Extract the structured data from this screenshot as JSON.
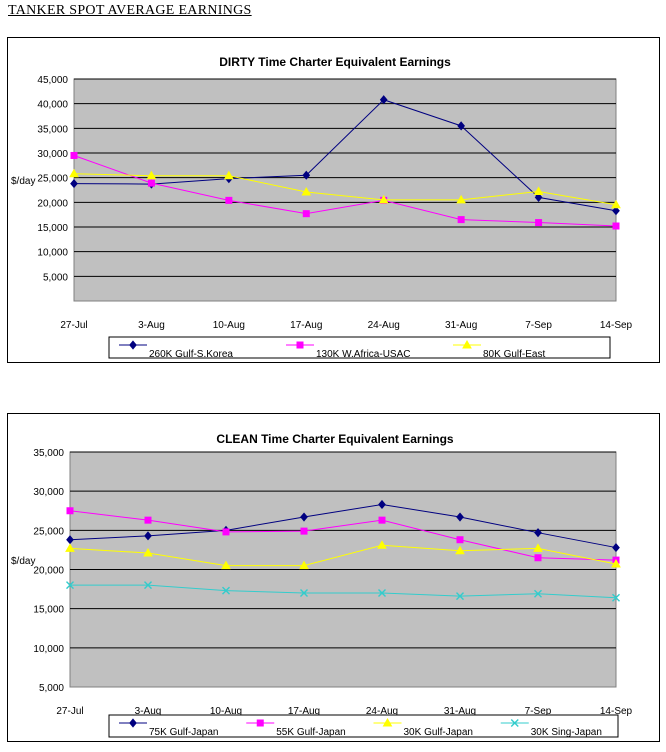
{
  "page_title": "TANKER SPOT AVERAGE EARNINGS",
  "chart_data": [
    {
      "type": "line",
      "title": "DIRTY Time Charter Equivalent Earnings",
      "ylabel": "$/day",
      "xlabel": "",
      "ylim": [
        0,
        45000
      ],
      "yticks": [
        5000,
        10000,
        15000,
        20000,
        25000,
        30000,
        35000,
        40000,
        45000
      ],
      "ytick_labels": [
        "5,000",
        "10,000",
        "15,000",
        "20,000",
        "25,000",
        "30,000",
        "35,000",
        "40,000",
        "45,000"
      ],
      "categories": [
        "27-Jul",
        "3-Aug",
        "10-Aug",
        "17-Aug",
        "24-Aug",
        "31-Aug",
        "7-Sep",
        "14-Sep"
      ],
      "grid": true,
      "legend": "bottom",
      "plot_background": "#c0c0c0",
      "series": [
        {
          "name": "260K Gulf-S.Korea",
          "color": "#000080",
          "marker": "diamond",
          "values": [
            23800,
            23700,
            24800,
            25500,
            40800,
            35500,
            21000,
            18300
          ]
        },
        {
          "name": "130K W.Africa-USAC",
          "color": "#ff00ff",
          "marker": "square",
          "values": [
            29500,
            23900,
            20400,
            17700,
            20400,
            16500,
            15900,
            15200
          ]
        },
        {
          "name": "80K Gulf-East",
          "color": "#ffff00",
          "marker": "triangle",
          "values": [
            25800,
            25400,
            25400,
            22100,
            20500,
            20500,
            22200,
            19500
          ]
        }
      ]
    },
    {
      "type": "line",
      "title": "CLEAN Time Charter Equivalent Earnings",
      "ylabel": "$/day",
      "xlabel": "",
      "ylim": [
        5000,
        35000
      ],
      "yticks": [
        5000,
        10000,
        15000,
        20000,
        25000,
        30000,
        35000
      ],
      "ytick_labels": [
        "5,000",
        "10,000",
        "15,000",
        "20,000",
        "25,000",
        "30,000",
        "35,000"
      ],
      "categories": [
        "27-Jul",
        "3-Aug",
        "10-Aug",
        "17-Aug",
        "24-Aug",
        "31-Aug",
        "7-Sep",
        "14-Sep"
      ],
      "grid": true,
      "legend": "bottom",
      "plot_background": "#c0c0c0",
      "series": [
        {
          "name": "75K Gulf-Japan",
          "color": "#000080",
          "marker": "diamond",
          "values": [
            23800,
            24300,
            25000,
            26700,
            28300,
            26700,
            24700,
            22800
          ]
        },
        {
          "name": "55K Gulf-Japan",
          "color": "#ff00ff",
          "marker": "square",
          "values": [
            27500,
            26300,
            24800,
            24900,
            26300,
            23800,
            21500,
            21200
          ]
        },
        {
          "name": "30K Gulf-Japan",
          "color": "#ffff00",
          "marker": "triangle",
          "values": [
            22700,
            22100,
            20500,
            20500,
            23100,
            22400,
            22700,
            20700
          ]
        },
        {
          "name": "30K Sing-Japan",
          "color": "#33cccc",
          "marker": "x",
          "values": [
            18000,
            18000,
            17300,
            17000,
            17000,
            16600,
            16900,
            16400
          ]
        }
      ]
    }
  ]
}
